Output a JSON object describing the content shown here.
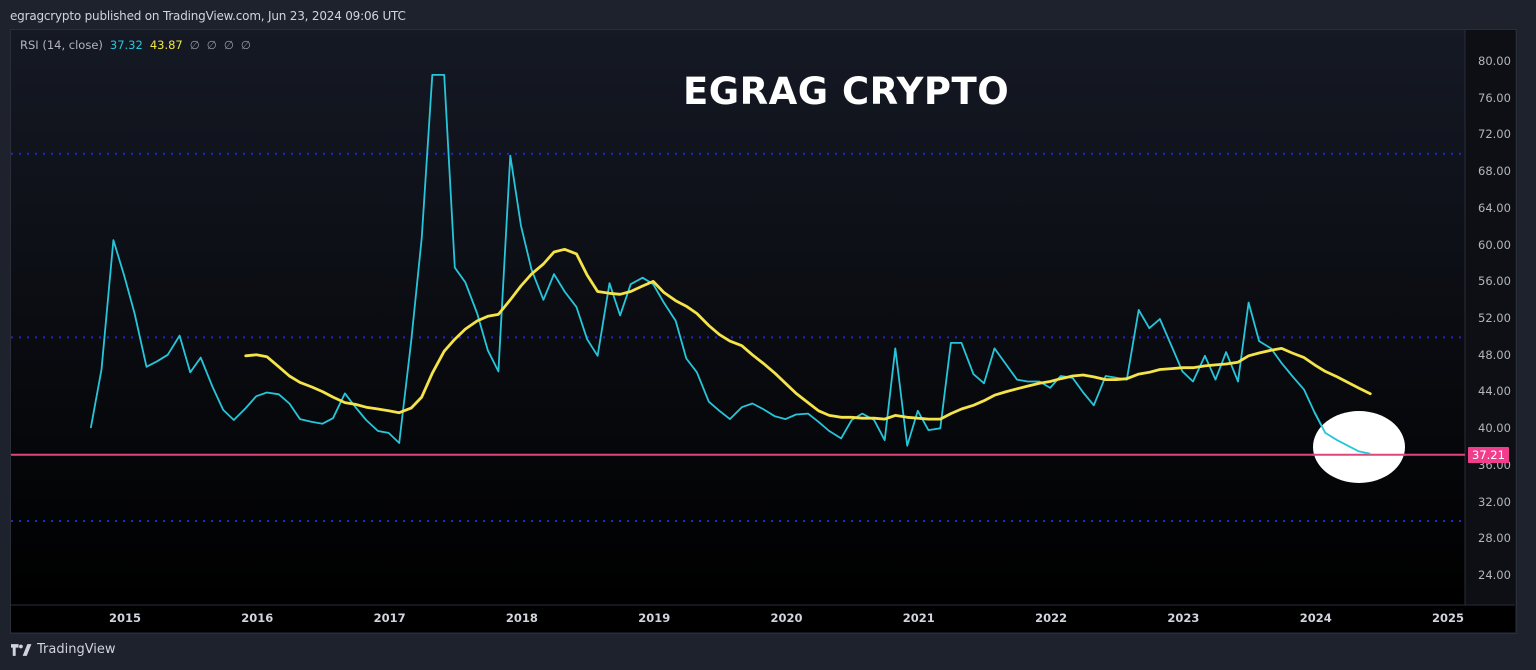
{
  "header": {
    "published_text": "egragcrypto published on TradingView.com, Jun 23, 2024 09:06 UTC"
  },
  "legend": {
    "indicator": "RSI (14, close)",
    "rsi_value": "37.32",
    "ma_value": "43.87",
    "na_values": [
      "∅",
      "∅",
      "∅",
      "∅"
    ]
  },
  "overlay_title": "EGRAG CRYPTO",
  "footer": {
    "brand": "TradingView"
  },
  "price_tag": {
    "value": "37.21",
    "color": "#f23d8c"
  },
  "colors": {
    "rsi_line": "#26c6da",
    "ma_line": "#f5e34a",
    "band_lines": "#2424c8",
    "support_line": "#e0457a",
    "highlight_circle": "#ffffff",
    "pane_bg_top": "#151924",
    "pane_bg_bottom": "#000000"
  },
  "chart_data": {
    "type": "line",
    "title": "EGRAG CRYPTO",
    "subtitle": "RSI (14, close)",
    "xlabel": "",
    "ylabel": "",
    "ylim": [
      20,
      82
    ],
    "y_ticks": [
      "80.00",
      "76.00",
      "72.00",
      "68.00",
      "64.00",
      "60.00",
      "56.00",
      "52.00",
      "48.00",
      "44.00",
      "40.00",
      "36.00",
      "32.00",
      "28.00",
      "24.00"
    ],
    "x_ticks": [
      "2015",
      "2016",
      "2017",
      "2018",
      "2019",
      "2020",
      "2021",
      "2022",
      "2023",
      "2024",
      "2025"
    ],
    "grid": false,
    "legend_position": "top-left",
    "hlines": [
      {
        "name": "Upper band",
        "value": 70,
        "style": "dotted"
      },
      {
        "name": "Middle band",
        "value": 50,
        "style": "dotted"
      },
      {
        "name": "Lower band",
        "value": 30,
        "style": "dotted"
      },
      {
        "name": "Support",
        "value": 37.21,
        "style": "solid"
      }
    ],
    "annotations": [
      {
        "type": "ellipse",
        "x": 2024.4,
        "y": 38.5,
        "label": "highlight"
      }
    ],
    "series": [
      {
        "name": "RSI",
        "points": [
          [
            2014.75,
            40.2
          ],
          [
            2014.83,
            46.5
          ],
          [
            2014.92,
            60.6
          ],
          [
            2015.0,
            56.8
          ],
          [
            2015.08,
            52.6
          ],
          [
            2015.17,
            46.8
          ],
          [
            2015.25,
            47.4
          ],
          [
            2015.33,
            48.1
          ],
          [
            2015.42,
            50.2
          ],
          [
            2015.5,
            46.2
          ],
          [
            2015.58,
            47.8
          ],
          [
            2015.67,
            44.6
          ],
          [
            2015.75,
            42.1
          ],
          [
            2015.83,
            41.0
          ],
          [
            2015.92,
            42.3
          ],
          [
            2016.0,
            43.6
          ],
          [
            2016.08,
            44.0
          ],
          [
            2016.17,
            43.8
          ],
          [
            2016.25,
            42.8
          ],
          [
            2016.33,
            41.1
          ],
          [
            2016.42,
            40.8
          ],
          [
            2016.5,
            40.6
          ],
          [
            2016.58,
            41.2
          ],
          [
            2016.67,
            43.9
          ],
          [
            2016.75,
            42.4
          ],
          [
            2016.83,
            41.0
          ],
          [
            2016.92,
            39.8
          ],
          [
            2017.0,
            39.6
          ],
          [
            2017.08,
            38.5
          ],
          [
            2017.17,
            49.5
          ],
          [
            2017.25,
            60.8
          ],
          [
            2017.33,
            78.6
          ],
          [
            2017.42,
            78.6
          ],
          [
            2017.5,
            57.6
          ],
          [
            2017.58,
            56.0
          ],
          [
            2017.67,
            52.6
          ],
          [
            2017.75,
            48.6
          ],
          [
            2017.83,
            46.3
          ],
          [
            2017.92,
            69.8
          ],
          [
            2018.0,
            62.2
          ],
          [
            2018.08,
            57.4
          ],
          [
            2018.17,
            54.1
          ],
          [
            2018.25,
            56.9
          ],
          [
            2018.33,
            55.0
          ],
          [
            2018.42,
            53.3
          ],
          [
            2018.5,
            49.8
          ],
          [
            2018.58,
            48.0
          ],
          [
            2018.67,
            55.9
          ],
          [
            2018.75,
            52.4
          ],
          [
            2018.83,
            55.8
          ],
          [
            2018.92,
            56.5
          ],
          [
            2019.0,
            55.8
          ],
          [
            2019.08,
            53.8
          ],
          [
            2019.17,
            51.8
          ],
          [
            2019.25,
            47.7
          ],
          [
            2019.33,
            46.2
          ],
          [
            2019.42,
            43.0
          ],
          [
            2019.5,
            42.0
          ],
          [
            2019.58,
            41.1
          ],
          [
            2019.67,
            42.4
          ],
          [
            2019.75,
            42.8
          ],
          [
            2019.83,
            42.2
          ],
          [
            2019.92,
            41.4
          ],
          [
            2020.0,
            41.1
          ],
          [
            2020.08,
            41.6
          ],
          [
            2020.17,
            41.7
          ],
          [
            2020.25,
            40.8
          ],
          [
            2020.33,
            39.8
          ],
          [
            2020.42,
            39.0
          ],
          [
            2020.5,
            41.0
          ],
          [
            2020.58,
            41.7
          ],
          [
            2020.67,
            41.0
          ],
          [
            2020.75,
            38.8
          ],
          [
            2020.83,
            48.8
          ],
          [
            2020.92,
            38.2
          ],
          [
            2021.0,
            42.0
          ],
          [
            2021.08,
            39.9
          ],
          [
            2021.17,
            40.1
          ],
          [
            2021.25,
            49.4
          ],
          [
            2021.33,
            49.4
          ],
          [
            2021.42,
            46.0
          ],
          [
            2021.5,
            45.0
          ],
          [
            2021.58,
            48.8
          ],
          [
            2021.67,
            47.0
          ],
          [
            2021.75,
            45.4
          ],
          [
            2021.83,
            45.2
          ],
          [
            2021.92,
            45.2
          ],
          [
            2022.0,
            44.5
          ],
          [
            2022.08,
            45.8
          ],
          [
            2022.17,
            45.6
          ],
          [
            2022.25,
            44.0
          ],
          [
            2022.33,
            42.6
          ],
          [
            2022.42,
            45.8
          ],
          [
            2022.5,
            45.6
          ],
          [
            2022.58,
            45.4
          ],
          [
            2022.67,
            53.0
          ],
          [
            2022.75,
            51.0
          ],
          [
            2022.83,
            52.0
          ],
          [
            2022.92,
            49.0
          ],
          [
            2023.0,
            46.3
          ],
          [
            2023.08,
            45.2
          ],
          [
            2023.17,
            48.0
          ],
          [
            2023.25,
            45.4
          ],
          [
            2023.33,
            48.4
          ],
          [
            2023.42,
            45.2
          ],
          [
            2023.5,
            53.8
          ],
          [
            2023.58,
            49.6
          ],
          [
            2023.67,
            48.8
          ],
          [
            2023.75,
            47.2
          ],
          [
            2023.83,
            45.8
          ],
          [
            2023.92,
            44.3
          ],
          [
            2024.0,
            41.8
          ],
          [
            2024.08,
            39.6
          ],
          [
            2024.17,
            38.8
          ],
          [
            2024.25,
            38.2
          ],
          [
            2024.33,
            37.6
          ],
          [
            2024.42,
            37.32
          ]
        ]
      },
      {
        "name": "RSI-based MA",
        "points": [
          [
            2015.92,
            48.0
          ],
          [
            2016.0,
            48.1
          ],
          [
            2016.08,
            47.9
          ],
          [
            2016.17,
            46.8
          ],
          [
            2016.25,
            45.8
          ],
          [
            2016.33,
            45.1
          ],
          [
            2016.42,
            44.6
          ],
          [
            2016.5,
            44.1
          ],
          [
            2016.58,
            43.5
          ],
          [
            2016.67,
            42.9
          ],
          [
            2016.75,
            42.7
          ],
          [
            2016.83,
            42.4
          ],
          [
            2016.92,
            42.2
          ],
          [
            2017.0,
            42.0
          ],
          [
            2017.08,
            41.8
          ],
          [
            2017.17,
            42.3
          ],
          [
            2017.25,
            43.5
          ],
          [
            2017.33,
            46.1
          ],
          [
            2017.42,
            48.5
          ],
          [
            2017.5,
            49.8
          ],
          [
            2017.58,
            50.9
          ],
          [
            2017.67,
            51.8
          ],
          [
            2017.75,
            52.3
          ],
          [
            2017.83,
            52.5
          ],
          [
            2017.92,
            54.1
          ],
          [
            2018.0,
            55.6
          ],
          [
            2018.08,
            56.9
          ],
          [
            2018.17,
            58.0
          ],
          [
            2018.25,
            59.3
          ],
          [
            2018.33,
            59.6
          ],
          [
            2018.42,
            59.1
          ],
          [
            2018.5,
            56.8
          ],
          [
            2018.58,
            55.0
          ],
          [
            2018.67,
            54.8
          ],
          [
            2018.75,
            54.7
          ],
          [
            2018.83,
            55.0
          ],
          [
            2018.92,
            55.6
          ],
          [
            2019.0,
            56.1
          ],
          [
            2019.08,
            54.9
          ],
          [
            2019.17,
            54.0
          ],
          [
            2019.25,
            53.4
          ],
          [
            2019.33,
            52.6
          ],
          [
            2019.42,
            51.3
          ],
          [
            2019.5,
            50.3
          ],
          [
            2019.58,
            49.6
          ],
          [
            2019.67,
            49.1
          ],
          [
            2019.75,
            48.1
          ],
          [
            2019.83,
            47.2
          ],
          [
            2019.92,
            46.1
          ],
          [
            2020.0,
            45.0
          ],
          [
            2020.08,
            43.9
          ],
          [
            2020.17,
            42.9
          ],
          [
            2020.25,
            42.0
          ],
          [
            2020.33,
            41.5
          ],
          [
            2020.42,
            41.3
          ],
          [
            2020.5,
            41.3
          ],
          [
            2020.58,
            41.2
          ],
          [
            2020.67,
            41.2
          ],
          [
            2020.75,
            41.1
          ],
          [
            2020.83,
            41.5
          ],
          [
            2020.92,
            41.3
          ],
          [
            2021.0,
            41.2
          ],
          [
            2021.08,
            41.1
          ],
          [
            2021.17,
            41.1
          ],
          [
            2021.25,
            41.7
          ],
          [
            2021.33,
            42.2
          ],
          [
            2021.42,
            42.6
          ],
          [
            2021.5,
            43.1
          ],
          [
            2021.58,
            43.7
          ],
          [
            2021.67,
            44.1
          ],
          [
            2021.75,
            44.4
          ],
          [
            2021.83,
            44.7
          ],
          [
            2021.92,
            45.0
          ],
          [
            2022.0,
            45.2
          ],
          [
            2022.08,
            45.5
          ],
          [
            2022.17,
            45.8
          ],
          [
            2022.25,
            45.9
          ],
          [
            2022.33,
            45.7
          ],
          [
            2022.42,
            45.4
          ],
          [
            2022.5,
            45.4
          ],
          [
            2022.58,
            45.5
          ],
          [
            2022.67,
            46.0
          ],
          [
            2022.75,
            46.2
          ],
          [
            2022.83,
            46.5
          ],
          [
            2022.92,
            46.6
          ],
          [
            2023.0,
            46.7
          ],
          [
            2023.08,
            46.7
          ],
          [
            2023.17,
            46.9
          ],
          [
            2023.25,
            47.0
          ],
          [
            2023.33,
            47.1
          ],
          [
            2023.42,
            47.3
          ],
          [
            2023.5,
            48.0
          ],
          [
            2023.58,
            48.3
          ],
          [
            2023.67,
            48.6
          ],
          [
            2023.75,
            48.8
          ],
          [
            2023.83,
            48.3
          ],
          [
            2023.92,
            47.8
          ],
          [
            2024.0,
            47.0
          ],
          [
            2024.08,
            46.3
          ],
          [
            2024.17,
            45.7
          ],
          [
            2024.25,
            45.1
          ],
          [
            2024.33,
            44.5
          ],
          [
            2024.42,
            43.87
          ]
        ]
      }
    ]
  }
}
